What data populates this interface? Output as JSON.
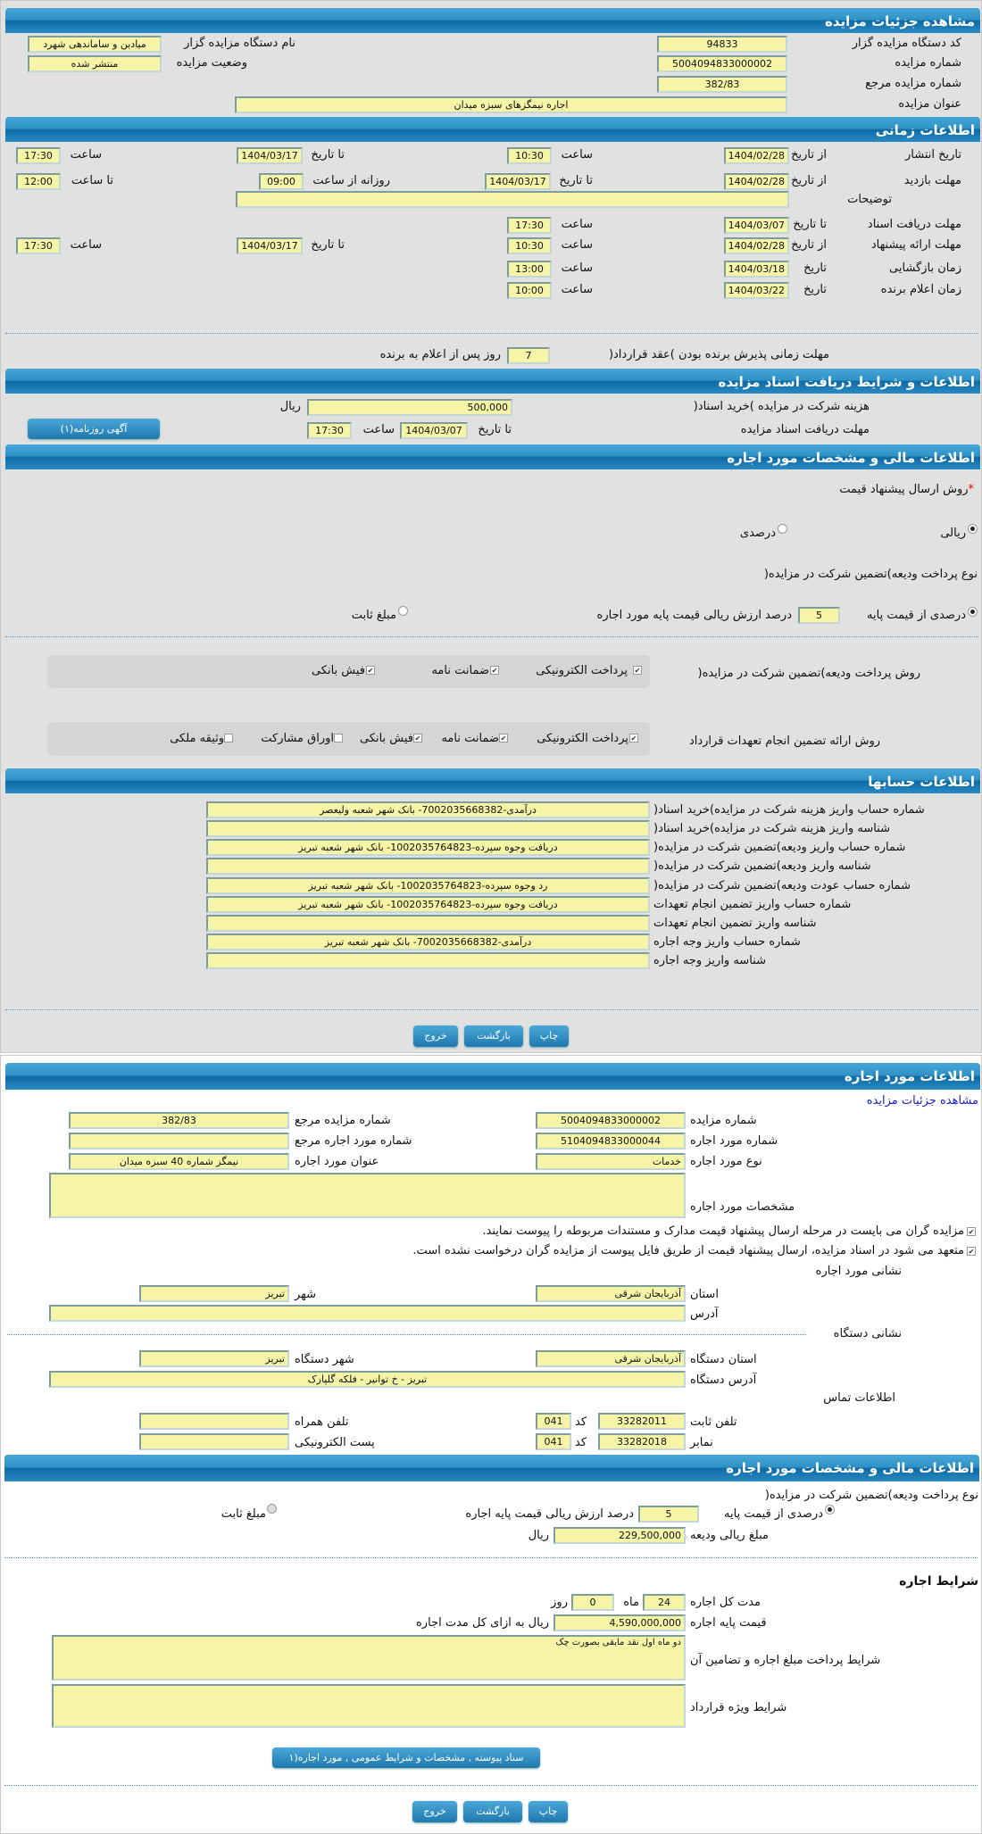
{
  "header": {
    "title": "مشاهده جزئیات مزایده"
  },
  "auction": {
    "code_label": "کد دستگاه مزایده گزار",
    "code": "94833",
    "name_label": "نام دستگاه مزایده گزار",
    "name": "میادین و ساماندهی شهرد",
    "number_label": "شماره مزایده",
    "number": "5004094833000002",
    "status_label": "وضعیت مزایده",
    "status": "منتشر شده",
    "ref_label": "شماره مزایده مرجع",
    "ref": "382/83",
    "title_label": "عنوان مزایده",
    "title": "اجاره نیمگزهای سبزه میدان"
  },
  "timing": {
    "title": "اطلاعات زمانی",
    "publish": {
      "label": "تاریخ انتشار",
      "from_label": "از تاریخ",
      "from": "1404/02/28",
      "time_label": "ساعت",
      "from_time": "10:30",
      "to_label": "تا تاریخ",
      "to": "1404/03/17",
      "to_time_label": "ساعت",
      "to_time": "17:30"
    },
    "visit": {
      "label": "مهلت بازدید",
      "from_label": "از تاریخ",
      "from": "1404/02/28",
      "to_label": "تا تاریخ",
      "to": "1404/03/17",
      "daily_label": "روزانه از ساعت",
      "daily_from": "09:00",
      "until_label": "تا ساعت",
      "daily_to": "12:00"
    },
    "desc_label": "توضیحات",
    "desc": "",
    "docs": {
      "label": "مهلت دریافت اسناد",
      "to_label": "تا تاریخ",
      "to": "1404/03/07",
      "time_label": "ساعت",
      "time": "17:30"
    },
    "bid": {
      "label": "مهلت ارائه پیشنهاد",
      "from_label": "از تاریخ",
      "from": "1404/02/28",
      "time_label": "ساعت",
      "from_time": "10:30",
      "to_label": "تا تاریخ",
      "to": "1404/03/17",
      "to_time_label": "ساعت",
      "to_time": "17:30"
    },
    "opening": {
      "label": "زمان بازگشایی",
      "date_label": "تاریخ",
      "date": "1404/03/18",
      "time_label": "ساعت",
      "time": "13:00"
    },
    "winner": {
      "label": "زمان اعلام برنده",
      "date_label": "تاریخ",
      "date": "1404/03/22",
      "time_label": "ساعت",
      "time": "10:00"
    },
    "acceptance": {
      "label": "مهلت زمانی پذیرش برنده بودن )عقد قرارداد(",
      "days": "7",
      "suffix": "روز پس از اعلام به برنده"
    }
  },
  "documents": {
    "title": "اطلاعات و شرایط دریافت اسناد مزایده",
    "fee_label": "هزینه شرکت در مزایده )خرید اسناد(",
    "fee": "500,000",
    "currency": "ریال",
    "deadline_label": "مهلت دریافت اسناد مزایده",
    "to_label": "تا تاریخ",
    "to": "1404/03/07",
    "time_label": "ساعت",
    "time": "17:30",
    "newspaper_button": "آگهی روزنامه(۱)"
  },
  "finance": {
    "title": "اطلاعات مالی و مشخصات مورد اجاره",
    "required_mark": "*",
    "price_method_label": "روش ارسال پیشنهاد قیمت",
    "option_rial": "ریالی",
    "option_percent": "درصدی",
    "deposit_type_label": "نوع پرداخت ودیعه)تضمین شرکت در مزایده(",
    "percent_of_base": "درصدی از قیمت پایه",
    "percent": "5",
    "percent_suffix": "درصد ارزش ریالی قیمت پایه مورد اجاره",
    "fixed_amount": "مبلغ ثابت",
    "deposit_method_label": "روش پرداخت ودیعه)تضمین شرکت در مزایده(",
    "deposit_methods": [
      {
        "label": "پرداخت الکترونیکی",
        "checked": true
      },
      {
        "label": "ضمانت نامه",
        "checked": true
      },
      {
        "label": "فیش بانکی",
        "checked": true
      }
    ],
    "guarantee_method_label": "روش ارائه تضمین انجام تعهدات قرارداد",
    "guarantee_methods": [
      {
        "label": "پرداخت الکترونیکی",
        "checked": true
      },
      {
        "label": "ضمانت نامه",
        "checked": true
      },
      {
        "label": "فیش بانکی",
        "checked": true
      },
      {
        "label": "اوراق مشارکت",
        "checked": false
      },
      {
        "label": "وثیقه ملکی",
        "checked": false
      }
    ]
  },
  "accounts": {
    "title": "اطلاعات حسابها",
    "rows": [
      {
        "label": "شماره حساب واریز هزینه شرکت در مزایده)خرید اسناد(",
        "value": "درآمدی-7002035668382- بانک شهر شعبه ولیعصر"
      },
      {
        "label": "شناسه واریز هزینه شرکت در مزایده)خرید اسناد(",
        "value": ""
      },
      {
        "label": "شماره حساب واریز ودیعه)تضمین شرکت در مزایده(",
        "value": "دریافت وجوه سپرده-1002035764823- بانک شهر شعبه تبریز"
      },
      {
        "label": "شناسه واریز ودیعه)تضمین شرکت در مزایده(",
        "value": ""
      },
      {
        "label": "شماره حساب عودت ودیعه)تضمین شرکت در مزایده(",
        "value": "رد وجوه سپرده-1002035764823- بانک شهر شعبه تبریز"
      },
      {
        "label": "شماره حساب واریز تضمین انجام تعهدات",
        "value": "دریافت وجوه سپرده-1002035764823- بانک شهر شعبه تبریز"
      },
      {
        "label": "شناسه واریز تضمین انجام تعهدات",
        "value": ""
      },
      {
        "label": "شماره حساب واریز وجه اجاره",
        "value": "درآمدی-7002035668382- بانک شهر شعبه تبریز"
      },
      {
        "label": "شناسه واریز وجه اجاره",
        "value": ""
      }
    ]
  },
  "actions": {
    "print": "چاپ",
    "back": "بازگشت",
    "exit": "خروج"
  },
  "lease": {
    "title": "اطلاعات مورد اجاره",
    "details_link": "مشاهده جزئیات مزایده",
    "auction_number_label": "شماره مزایده",
    "auction_number": "5004094833000002",
    "auction_ref_label": "شماره مزایده مرجع",
    "auction_ref": "382/83",
    "item_number_label": "شماره مورد اجاره",
    "item_number": "5104094833000044",
    "item_ref_label": "شماره مورد اجاره مرجع",
    "item_ref": "",
    "type_label": "نوع مورد اجاره",
    "type": "خدمات",
    "item_title_label": "عنوان مورد اجاره",
    "item_title": "نیمگز شماره 40 سبزه میدان",
    "specs_label": "مشخصات مورد اجاره",
    "specs": "",
    "check1": "مزایده گران می بایست در مرحله ارسال پیشنهاد قیمت مدارک و مستندات مربوطه را پیوست نمایند.",
    "check2": "متعهد می شود در اسناد مزایده، ارسال پیشنهاد قیمت از طریق فایل پیوست از مزایده گران درخواست نشده است.",
    "address_title": "نشانی مورد اجاره",
    "province_label": "استان",
    "province": "آذربایجان شرقی",
    "city_label": "شهر",
    "city": "تبریز",
    "address_label": "آدرس",
    "address": "",
    "org_address_title": "نشانی دستگاه",
    "org_province_label": "استان دستگاه",
    "org_province": "آذربایجان شرقی",
    "org_city_label": "شهر دستگاه",
    "org_city": "تبریز",
    "org_address_label": "آدرس دستگاه",
    "org_address": "تبریز - خ توانیر - فلکه گلپارک",
    "contact_title": "اطلاعات تماس",
    "phone_label": "تلفن ثابت",
    "phone": "33282011",
    "code_label": "کد",
    "phone_code": "041",
    "mobile_label": "تلفن همراه",
    "mobile": "",
    "fax_label": "نمابر",
    "fax": "33282018",
    "fax_code": "041",
    "email_label": "پست الکترونیکی",
    "email": ""
  },
  "lease_finance": {
    "title": "اطلاعات مالی و مشخصات مورد اجاره",
    "deposit_type_label": "نوع پرداخت ودیعه)تضمین شرکت در مزایده(",
    "percent_of_base": "درصدی از قیمت پایه",
    "percent": "5",
    "percent_suffix": "درصد ارزش ریالی قیمت پایه اجاره",
    "fixed_amount": "مبلغ ثابت",
    "deposit_amount_label": "مبلغ ریالی ودیعه",
    "deposit_amount": "229,500,000",
    "currency": "ریال"
  },
  "lease_terms": {
    "title": "شرایط اجاره",
    "duration_label": "مدت کل اجاره",
    "months": "24",
    "months_label": "ماه",
    "days": "0",
    "days_label": "روز",
    "base_price_label": "قیمت پایه اجاره",
    "base_price": "4,590,000,000",
    "base_price_suffix": "ریال به ازای کل مدت اجاره",
    "payment_terms_label": "شرایط پرداخت مبلغ اجاره و تضامین آن",
    "payment_terms": "دو ماه اول نقد مابقی بصورت چک",
    "special_terms_label": "شرایط ویژه قرارداد",
    "special_terms": "",
    "attachments_button": "سناد پیوسته , مشخصات و شرایط عمومی , مورد اجاره(۱"
  }
}
